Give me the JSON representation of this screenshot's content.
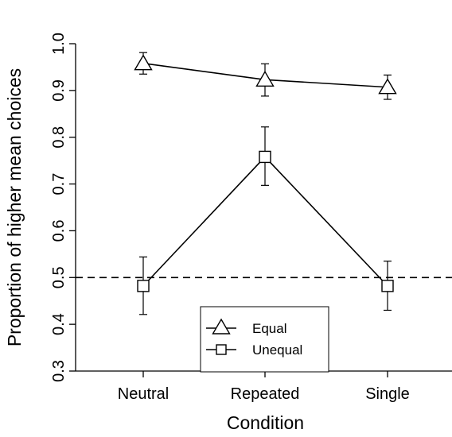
{
  "chart_data": {
    "type": "line",
    "categories": [
      "Neutral",
      "Repeated",
      "Single"
    ],
    "xlabel": "Condition",
    "ylabel": "Proportion of higher mean choices",
    "ylim": [
      0.3,
      1.0
    ],
    "yticks": [
      "0.3",
      "0.4",
      "0.5",
      "0.6",
      "0.7",
      "0.8",
      "0.9",
      "1.0"
    ],
    "reference_line": {
      "y": 0.5,
      "style": "dashed"
    },
    "series": [
      {
        "name": "Equal",
        "marker": "triangle",
        "values": [
          0.958,
          0.923,
          0.907
        ],
        "err_low": [
          0.935,
          0.888,
          0.881
        ],
        "err_high": [
          0.981,
          0.957,
          0.933
        ]
      },
      {
        "name": "Unequal",
        "marker": "square",
        "values": [
          0.482,
          0.758,
          0.482
        ],
        "err_low": [
          0.421,
          0.697,
          0.43
        ],
        "err_high": [
          0.544,
          0.822,
          0.535
        ]
      }
    ],
    "legend_position": "bottom-center",
    "grid": false
  }
}
